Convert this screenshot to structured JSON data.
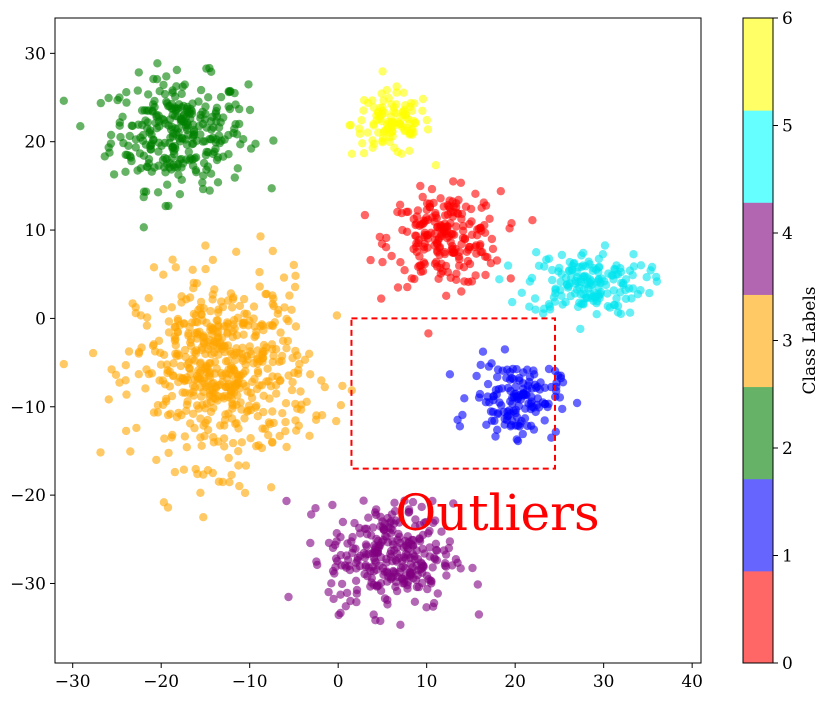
{
  "chart_data": [
    {
      "type": "scatter",
      "title": "",
      "xlabel": "",
      "ylabel": "",
      "xlim": [
        -32,
        41
      ],
      "ylim": [
        -39,
        34
      ],
      "xticks": [
        -30,
        -20,
        -10,
        0,
        10,
        20,
        30,
        40
      ],
      "yticks": [
        30,
        20,
        10,
        0,
        -10,
        -20,
        -30
      ],
      "xtick_labels": [
        "−30",
        "−20",
        "−10",
        "0",
        "10",
        "20",
        "30",
        "40"
      ],
      "ytick_labels": [
        "30",
        "20",
        "10",
        "0",
        "−10",
        "−20",
        "−30"
      ],
      "grid": false,
      "point_alpha": 0.6,
      "clusters": [
        {
          "class": 2,
          "color": "#008000",
          "center": [
            -18,
            21
          ],
          "spread": [
            5.5,
            4.5
          ],
          "count": 300
        },
        {
          "class": 6,
          "color": "#ffff00",
          "center": [
            6,
            22
          ],
          "spread": [
            3.2,
            2.6
          ],
          "count": 110
        },
        {
          "class": 0,
          "color": "#ff0000",
          "center": [
            12,
            9
          ],
          "spread": [
            4.5,
            3.8
          ],
          "count": 220
        },
        {
          "class": 5,
          "color": "#00e5ee",
          "center": [
            28,
            4
          ],
          "spread": [
            4.8,
            2.6
          ],
          "count": 170
        },
        {
          "class": 3,
          "color": "#ffa500",
          "center": [
            -13,
            -6
          ],
          "spread": [
            7,
            7.5
          ],
          "count": 560
        },
        {
          "class": 1,
          "color": "#0000ff",
          "center": [
            20,
            -9
          ],
          "spread": [
            3.5,
            3
          ],
          "count": 150
        },
        {
          "class": 4,
          "color": "#800080",
          "center": [
            6,
            -27
          ],
          "spread": [
            5,
            4.3
          ],
          "count": 300
        }
      ],
      "annotations": [
        {
          "type": "dashed-rectangle",
          "color": "#ff0000",
          "x_range": [
            1.5,
            24.5
          ],
          "y_range": [
            -17,
            0
          ]
        },
        {
          "type": "text",
          "text": "Outliers",
          "color": "#ff0000",
          "x": 18,
          "y": -22.5
        }
      ]
    },
    {
      "type": "colorbar",
      "label": "Class Labels",
      "range": [
        0,
        6
      ],
      "ticks": [
        0,
        1,
        2,
        3,
        4,
        5,
        6
      ],
      "tick_labels": [
        "0",
        "1",
        "2",
        "3",
        "4",
        "5",
        "6"
      ],
      "colors": [
        "#ff6666",
        "#6666ff",
        "#66b266",
        "#ffc966",
        "#b266b2",
        "#66ffff",
        "#ffff66"
      ]
    }
  ]
}
